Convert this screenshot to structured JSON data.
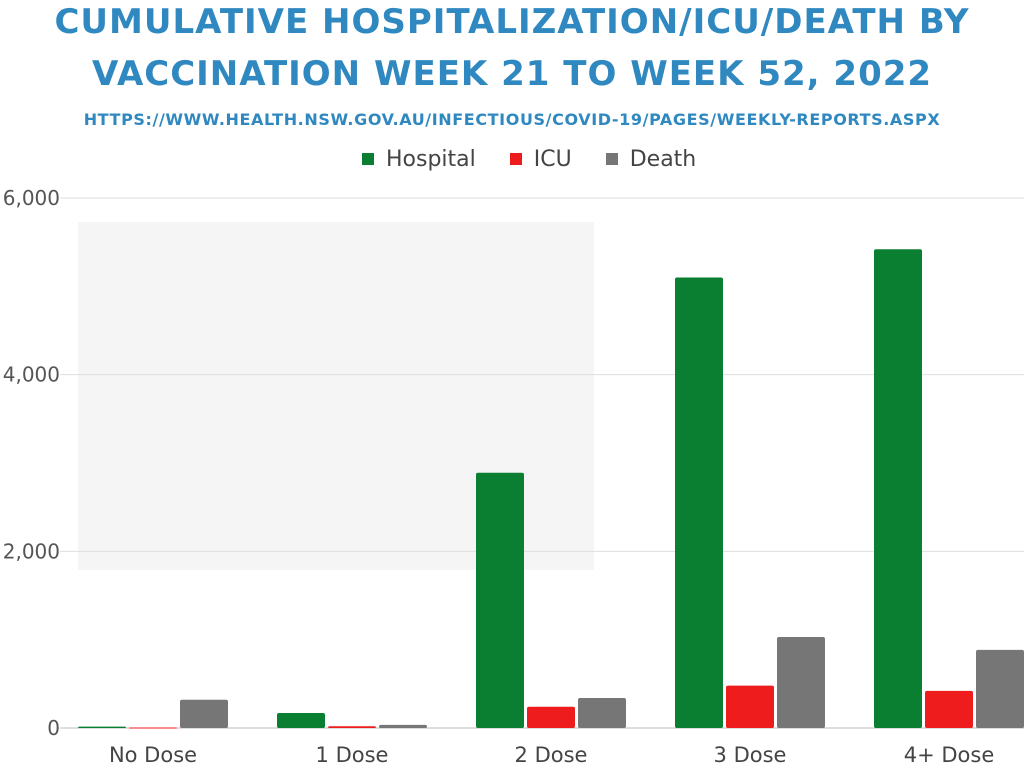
{
  "header": {
    "title_line1": "CUMULATIVE HOSPITALIZATION/ICU/DEATH BY",
    "title_line2": "VACCINATION WEEK 21 TO WEEK 52, 2022",
    "source_url": "HTTPS://WWW.HEALTH.NSW.GOV.AU/INFECTIOUS/COVID-19/PAGES/WEEKLY-REPORTS.ASPX"
  },
  "colors": {
    "Hospital": "#0a7f32",
    "ICU": "#ee1c1c",
    "Death": "#767676",
    "title": "#2f88c0"
  },
  "chart_data": {
    "type": "bar",
    "title": "CUMULATIVE HOSPITALIZATION/ICU/DEATH BY VACCINATION WEEK 21 TO WEEK 52, 2022",
    "categories": [
      "No Dose",
      "1 Dose",
      "2 Dose",
      "3 Dose",
      "4+ Dose"
    ],
    "series": [
      {
        "name": "Hospital",
        "values": [
          15,
          170,
          2890,
          5100,
          5420
        ]
      },
      {
        "name": "ICU",
        "values": [
          5,
          20,
          240,
          480,
          420
        ]
      },
      {
        "name": "Death",
        "values": [
          320,
          35,
          340,
          1030,
          885
        ]
      }
    ],
    "xlabel": "",
    "ylabel": "",
    "ylim": [
      0,
      6000
    ],
    "yticks": [
      "0",
      "2,000",
      "4,000",
      "6,000"
    ],
    "grid": true,
    "legend_position": "top"
  }
}
